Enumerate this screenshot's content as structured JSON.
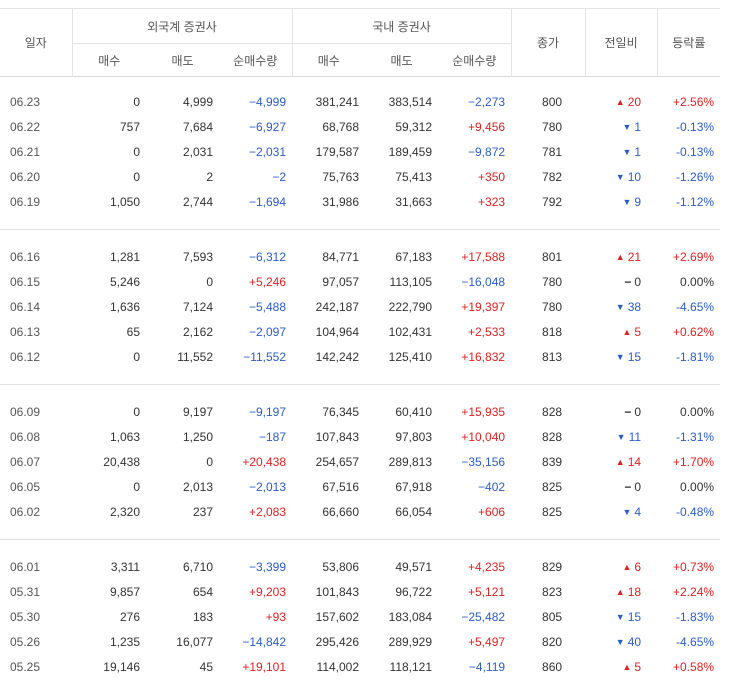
{
  "headers": {
    "date": "일자",
    "foreign_group": "외국계 증권사",
    "domestic_group": "국내 증권사",
    "buy": "매수",
    "sell": "매도",
    "net": "순매수량",
    "close": "종가",
    "change": "전일비",
    "rate": "등락률"
  },
  "colors": {
    "up": "#e02020",
    "down": "#2a5cc7"
  },
  "groups": [
    [
      {
        "date": "06.23",
        "f_buy": "0",
        "f_sell": "4,999",
        "f_net": "−4,999",
        "d_buy": "381,241",
        "d_sell": "383,514",
        "d_net": "−2,273",
        "close": "800",
        "chg": "20",
        "dir": "up",
        "rate": "+2.56%"
      },
      {
        "date": "06.22",
        "f_buy": "757",
        "f_sell": "7,684",
        "f_net": "−6,927",
        "d_buy": "68,768",
        "d_sell": "59,312",
        "d_net": "+9,456",
        "close": "780",
        "chg": "1",
        "dir": "down",
        "rate": "-0.13%"
      },
      {
        "date": "06.21",
        "f_buy": "0",
        "f_sell": "2,031",
        "f_net": "−2,031",
        "d_buy": "179,587",
        "d_sell": "189,459",
        "d_net": "−9,872",
        "close": "781",
        "chg": "1",
        "dir": "down",
        "rate": "-0.13%"
      },
      {
        "date": "06.20",
        "f_buy": "0",
        "f_sell": "2",
        "f_net": "−2",
        "d_buy": "75,763",
        "d_sell": "75,413",
        "d_net": "+350",
        "close": "782",
        "chg": "10",
        "dir": "down",
        "rate": "-1.26%"
      },
      {
        "date": "06.19",
        "f_buy": "1,050",
        "f_sell": "2,744",
        "f_net": "−1,694",
        "d_buy": "31,986",
        "d_sell": "31,663",
        "d_net": "+323",
        "close": "792",
        "chg": "9",
        "dir": "down",
        "rate": "-1.12%"
      }
    ],
    [
      {
        "date": "06.16",
        "f_buy": "1,281",
        "f_sell": "7,593",
        "f_net": "−6,312",
        "d_buy": "84,771",
        "d_sell": "67,183",
        "d_net": "+17,588",
        "close": "801",
        "chg": "21",
        "dir": "up",
        "rate": "+2.69%"
      },
      {
        "date": "06.15",
        "f_buy": "5,246",
        "f_sell": "0",
        "f_net": "+5,246",
        "d_buy": "97,057",
        "d_sell": "113,105",
        "d_net": "−16,048",
        "close": "780",
        "chg": "0",
        "dir": "flat",
        "rate": "0.00%"
      },
      {
        "date": "06.14",
        "f_buy": "1,636",
        "f_sell": "7,124",
        "f_net": "−5,488",
        "d_buy": "242,187",
        "d_sell": "222,790",
        "d_net": "+19,397",
        "close": "780",
        "chg": "38",
        "dir": "down",
        "rate": "-4.65%"
      },
      {
        "date": "06.13",
        "f_buy": "65",
        "f_sell": "2,162",
        "f_net": "−2,097",
        "d_buy": "104,964",
        "d_sell": "102,431",
        "d_net": "+2,533",
        "close": "818",
        "chg": "5",
        "dir": "up",
        "rate": "+0.62%"
      },
      {
        "date": "06.12",
        "f_buy": "0",
        "f_sell": "11,552",
        "f_net": "−11,552",
        "d_buy": "142,242",
        "d_sell": "125,410",
        "d_net": "+16,832",
        "close": "813",
        "chg": "15",
        "dir": "down",
        "rate": "-1.81%"
      }
    ],
    [
      {
        "date": "06.09",
        "f_buy": "0",
        "f_sell": "9,197",
        "f_net": "−9,197",
        "d_buy": "76,345",
        "d_sell": "60,410",
        "d_net": "+15,935",
        "close": "828",
        "chg": "0",
        "dir": "flat",
        "rate": "0.00%"
      },
      {
        "date": "06.08",
        "f_buy": "1,063",
        "f_sell": "1,250",
        "f_net": "−187",
        "d_buy": "107,843",
        "d_sell": "97,803",
        "d_net": "+10,040",
        "close": "828",
        "chg": "11",
        "dir": "down",
        "rate": "-1.31%"
      },
      {
        "date": "06.07",
        "f_buy": "20,438",
        "f_sell": "0",
        "f_net": "+20,438",
        "d_buy": "254,657",
        "d_sell": "289,813",
        "d_net": "−35,156",
        "close": "839",
        "chg": "14",
        "dir": "up",
        "rate": "+1.70%"
      },
      {
        "date": "06.05",
        "f_buy": "0",
        "f_sell": "2,013",
        "f_net": "−2,013",
        "d_buy": "67,516",
        "d_sell": "67,918",
        "d_net": "−402",
        "close": "825",
        "chg": "0",
        "dir": "flat",
        "rate": "0.00%"
      },
      {
        "date": "06.02",
        "f_buy": "2,320",
        "f_sell": "237",
        "f_net": "+2,083",
        "d_buy": "66,660",
        "d_sell": "66,054",
        "d_net": "+606",
        "close": "825",
        "chg": "4",
        "dir": "down",
        "rate": "-0.48%"
      }
    ],
    [
      {
        "date": "06.01",
        "f_buy": "3,311",
        "f_sell": "6,710",
        "f_net": "−3,399",
        "d_buy": "53,806",
        "d_sell": "49,571",
        "d_net": "+4,235",
        "close": "829",
        "chg": "6",
        "dir": "up",
        "rate": "+0.73%"
      },
      {
        "date": "05.31",
        "f_buy": "9,857",
        "f_sell": "654",
        "f_net": "+9,203",
        "d_buy": "101,843",
        "d_sell": "96,722",
        "d_net": "+5,121",
        "close": "823",
        "chg": "18",
        "dir": "up",
        "rate": "+2.24%"
      },
      {
        "date": "05.30",
        "f_buy": "276",
        "f_sell": "183",
        "f_net": "+93",
        "d_buy": "157,602",
        "d_sell": "183,084",
        "d_net": "−25,482",
        "close": "805",
        "chg": "15",
        "dir": "down",
        "rate": "-1.83%"
      },
      {
        "date": "05.26",
        "f_buy": "1,235",
        "f_sell": "16,077",
        "f_net": "−14,842",
        "d_buy": "295,426",
        "d_sell": "289,929",
        "d_net": "+5,497",
        "close": "820",
        "chg": "40",
        "dir": "down",
        "rate": "-4.65%"
      },
      {
        "date": "05.25",
        "f_buy": "19,146",
        "f_sell": "45",
        "f_net": "+19,101",
        "d_buy": "114,002",
        "d_sell": "118,121",
        "d_net": "−4,119",
        "close": "860",
        "chg": "5",
        "dir": "up",
        "rate": "+0.58%"
      }
    ]
  ]
}
